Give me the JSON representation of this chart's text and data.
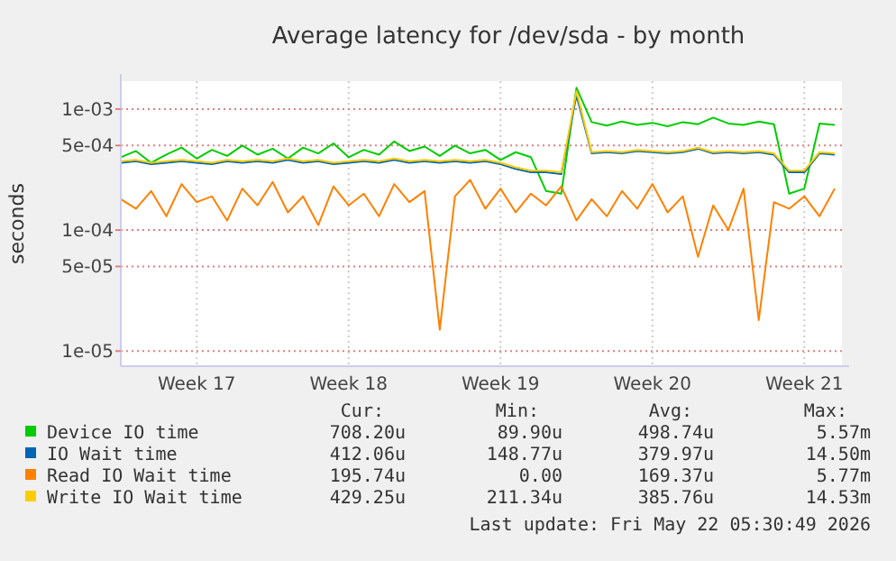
{
  "chart_data": {
    "type": "line",
    "title": "Average latency for /dev/sda - by month",
    "ylabel": "seconds",
    "log": "y",
    "grid": true,
    "legend": "bottom",
    "marker": "none",
    "line_style": "solid",
    "categories": [
      null,
      null,
      null,
      null,
      null,
      "Week 17",
      null,
      null,
      null,
      null,
      null,
      null,
      null,
      null,
      null,
      "Week 18",
      null,
      null,
      null,
      null,
      null,
      null,
      null,
      null,
      null,
      "Week 19",
      null,
      null,
      null,
      null,
      null,
      null,
      null,
      null,
      null,
      "Week 20",
      null,
      null,
      null,
      null,
      null,
      null,
      null,
      null,
      null,
      "Week 21",
      null,
      null
    ],
    "ylim": [
      7.5e-06,
      0.0017
    ],
    "yticks": [
      {
        "value": 1e-05,
        "label": "1e-05"
      },
      {
        "value": 5e-05,
        "label": "5e-05"
      },
      {
        "value": 0.0001,
        "label": "1e-04"
      },
      {
        "value": 0.0005,
        "label": "5e-04"
      },
      {
        "value": 0.001,
        "label": "1e-03"
      }
    ],
    "series": [
      {
        "name": "Device IO time",
        "color": "#00cc00",
        "values": [
          0.0004,
          0.00045,
          0.00036,
          0.00042,
          0.00048,
          0.00039,
          0.00046,
          0.00041,
          0.0005,
          0.00042,
          0.00047,
          0.00039,
          0.00048,
          0.00043,
          0.00052,
          0.0004,
          0.00046,
          0.00042,
          0.00054,
          0.00045,
          0.00049,
          0.00041,
          0.0005,
          0.00043,
          0.00046,
          0.00038,
          0.00044,
          0.0004,
          0.00021,
          0.0002,
          0.0015,
          0.00078,
          0.00073,
          0.00079,
          0.00074,
          0.00077,
          0.00072,
          0.00078,
          0.00075,
          0.00085,
          0.00076,
          0.00074,
          0.00079,
          0.00075,
          0.0002,
          0.00022,
          0.00076,
          0.00074
        ]
      },
      {
        "name": "IO Wait time",
        "color": "#0066b3",
        "values": [
          0.00036,
          0.00037,
          0.00035,
          0.00036,
          0.00037,
          0.00036,
          0.00035,
          0.00037,
          0.00036,
          0.00037,
          0.00036,
          0.00038,
          0.00036,
          0.00037,
          0.00035,
          0.00036,
          0.00037,
          0.00036,
          0.00038,
          0.00036,
          0.00037,
          0.00036,
          0.00037,
          0.00036,
          0.00037,
          0.00035,
          0.00032,
          0.0003,
          0.0003,
          0.00029,
          0.0013,
          0.00043,
          0.00044,
          0.00043,
          0.00045,
          0.00044,
          0.00043,
          0.00044,
          0.00047,
          0.00043,
          0.00044,
          0.00043,
          0.00044,
          0.00042,
          0.0003,
          0.0003,
          0.00043,
          0.00042
        ]
      },
      {
        "name": "Read IO Wait time",
        "color": "#ff8000",
        "values": [
          0.00018,
          0.00015,
          0.00021,
          0.00013,
          0.00024,
          0.00017,
          0.00019,
          0.00012,
          0.00022,
          0.00016,
          0.00025,
          0.00014,
          0.00019,
          0.00011,
          0.00023,
          0.00016,
          0.0002,
          0.00013,
          0.00024,
          0.00017,
          0.00021,
          1.5e-05,
          0.00019,
          0.00026,
          0.00015,
          0.00022,
          0.00014,
          0.0002,
          0.00016,
          0.00023,
          0.00012,
          0.00018,
          0.00013,
          0.00021,
          0.00015,
          0.00024,
          0.00014,
          0.00019,
          6e-05,
          0.00016,
          0.0001,
          0.00022,
          1.8e-05,
          0.00017,
          0.00015,
          0.00019,
          0.00013,
          0.00022
        ]
      },
      {
        "name": "Write IO Wait time",
        "color": "#ffcc00",
        "values": [
          0.00037,
          0.00038,
          0.00036,
          0.00037,
          0.00038,
          0.00037,
          0.00036,
          0.00038,
          0.00037,
          0.00038,
          0.00037,
          0.00039,
          0.00037,
          0.00038,
          0.00036,
          0.00037,
          0.00038,
          0.00037,
          0.00039,
          0.00037,
          0.00038,
          0.00037,
          0.00038,
          0.00037,
          0.00038,
          0.00036,
          0.00033,
          0.00031,
          0.00031,
          0.0003,
          0.0014,
          0.00044,
          0.00045,
          0.00044,
          0.00046,
          0.00045,
          0.00044,
          0.00045,
          0.00048,
          0.00044,
          0.00045,
          0.00044,
          0.00045,
          0.00043,
          0.00031,
          0.00031,
          0.00044,
          0.00043
        ]
      }
    ],
    "annotations": [
      "Cur:",
      "Min:",
      "Avg:",
      "Max:",
      "708.20u",
      "89.90u",
      "498.74u",
      "5.57m",
      "412.06u",
      "148.77u",
      "379.97u",
      "14.50m",
      "195.74u",
      "0.00",
      "169.37u",
      "5.77m",
      "429.25u",
      "211.34u",
      "385.76u",
      "14.53m",
      "Last update: Fri May 22 05:30:49 2026"
    ]
  }
}
